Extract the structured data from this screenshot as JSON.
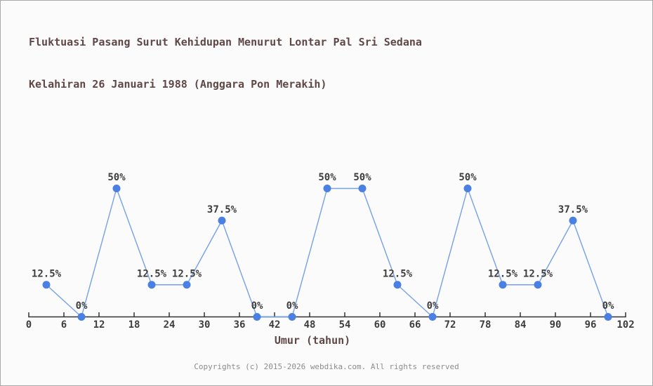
{
  "page": {
    "background": "#fbfbfb",
    "border_color": "#a9a9a9"
  },
  "title": {
    "line1": "Fluktuasi Pasang Surut Kehidupan Menurut Lontar Pal Sri Sedana",
    "line2": "Kelahiran 26 Januari 1988 (Anggara Pon Merakih)",
    "color": "#5f4747"
  },
  "footer": {
    "text": "Copyrights (c) 2015-2026 webdika.com. All rights reserved",
    "color": "#8c8c8c"
  },
  "chart_data": {
    "type": "line",
    "title": "Fluktuasi Pasang Surut Kehidupan Menurut Lontar Pal Sri Sedana Kelahiran 26 Januari 1988 (Anggara Pon Merakih)",
    "xlabel": "Umur (tahun)",
    "ylabel": "",
    "x": [
      3,
      9,
      15,
      21,
      27,
      33,
      39,
      45,
      51,
      57,
      63,
      69,
      75,
      81,
      87,
      93,
      99
    ],
    "values": [
      12.5,
      0,
      50,
      12.5,
      12.5,
      37.5,
      0,
      0,
      50,
      50,
      12.5,
      0,
      50,
      12.5,
      12.5,
      37.5,
      0
    ],
    "point_labels": [
      "12.5%",
      "0%",
      "50%",
      "12.5%",
      "12.5%",
      "37.5%",
      "0%",
      "0%",
      "50%",
      "50%",
      "12.5%",
      "0%",
      "50%",
      "12.5%",
      "12.5%",
      "37.5%",
      "0%"
    ],
    "x_ticks": [
      0,
      6,
      12,
      18,
      24,
      30,
      36,
      42,
      48,
      54,
      60,
      66,
      72,
      78,
      84,
      90,
      96,
      102
    ],
    "xlim": [
      0,
      102
    ],
    "ylim": [
      0,
      50
    ],
    "grid": false,
    "legend": false,
    "colors": {
      "marker": "#4a80e4",
      "line": "#74a0e8",
      "axis": "#333333",
      "tick_label": "#3d3d3d",
      "data_label": "#3d3d3d"
    }
  }
}
